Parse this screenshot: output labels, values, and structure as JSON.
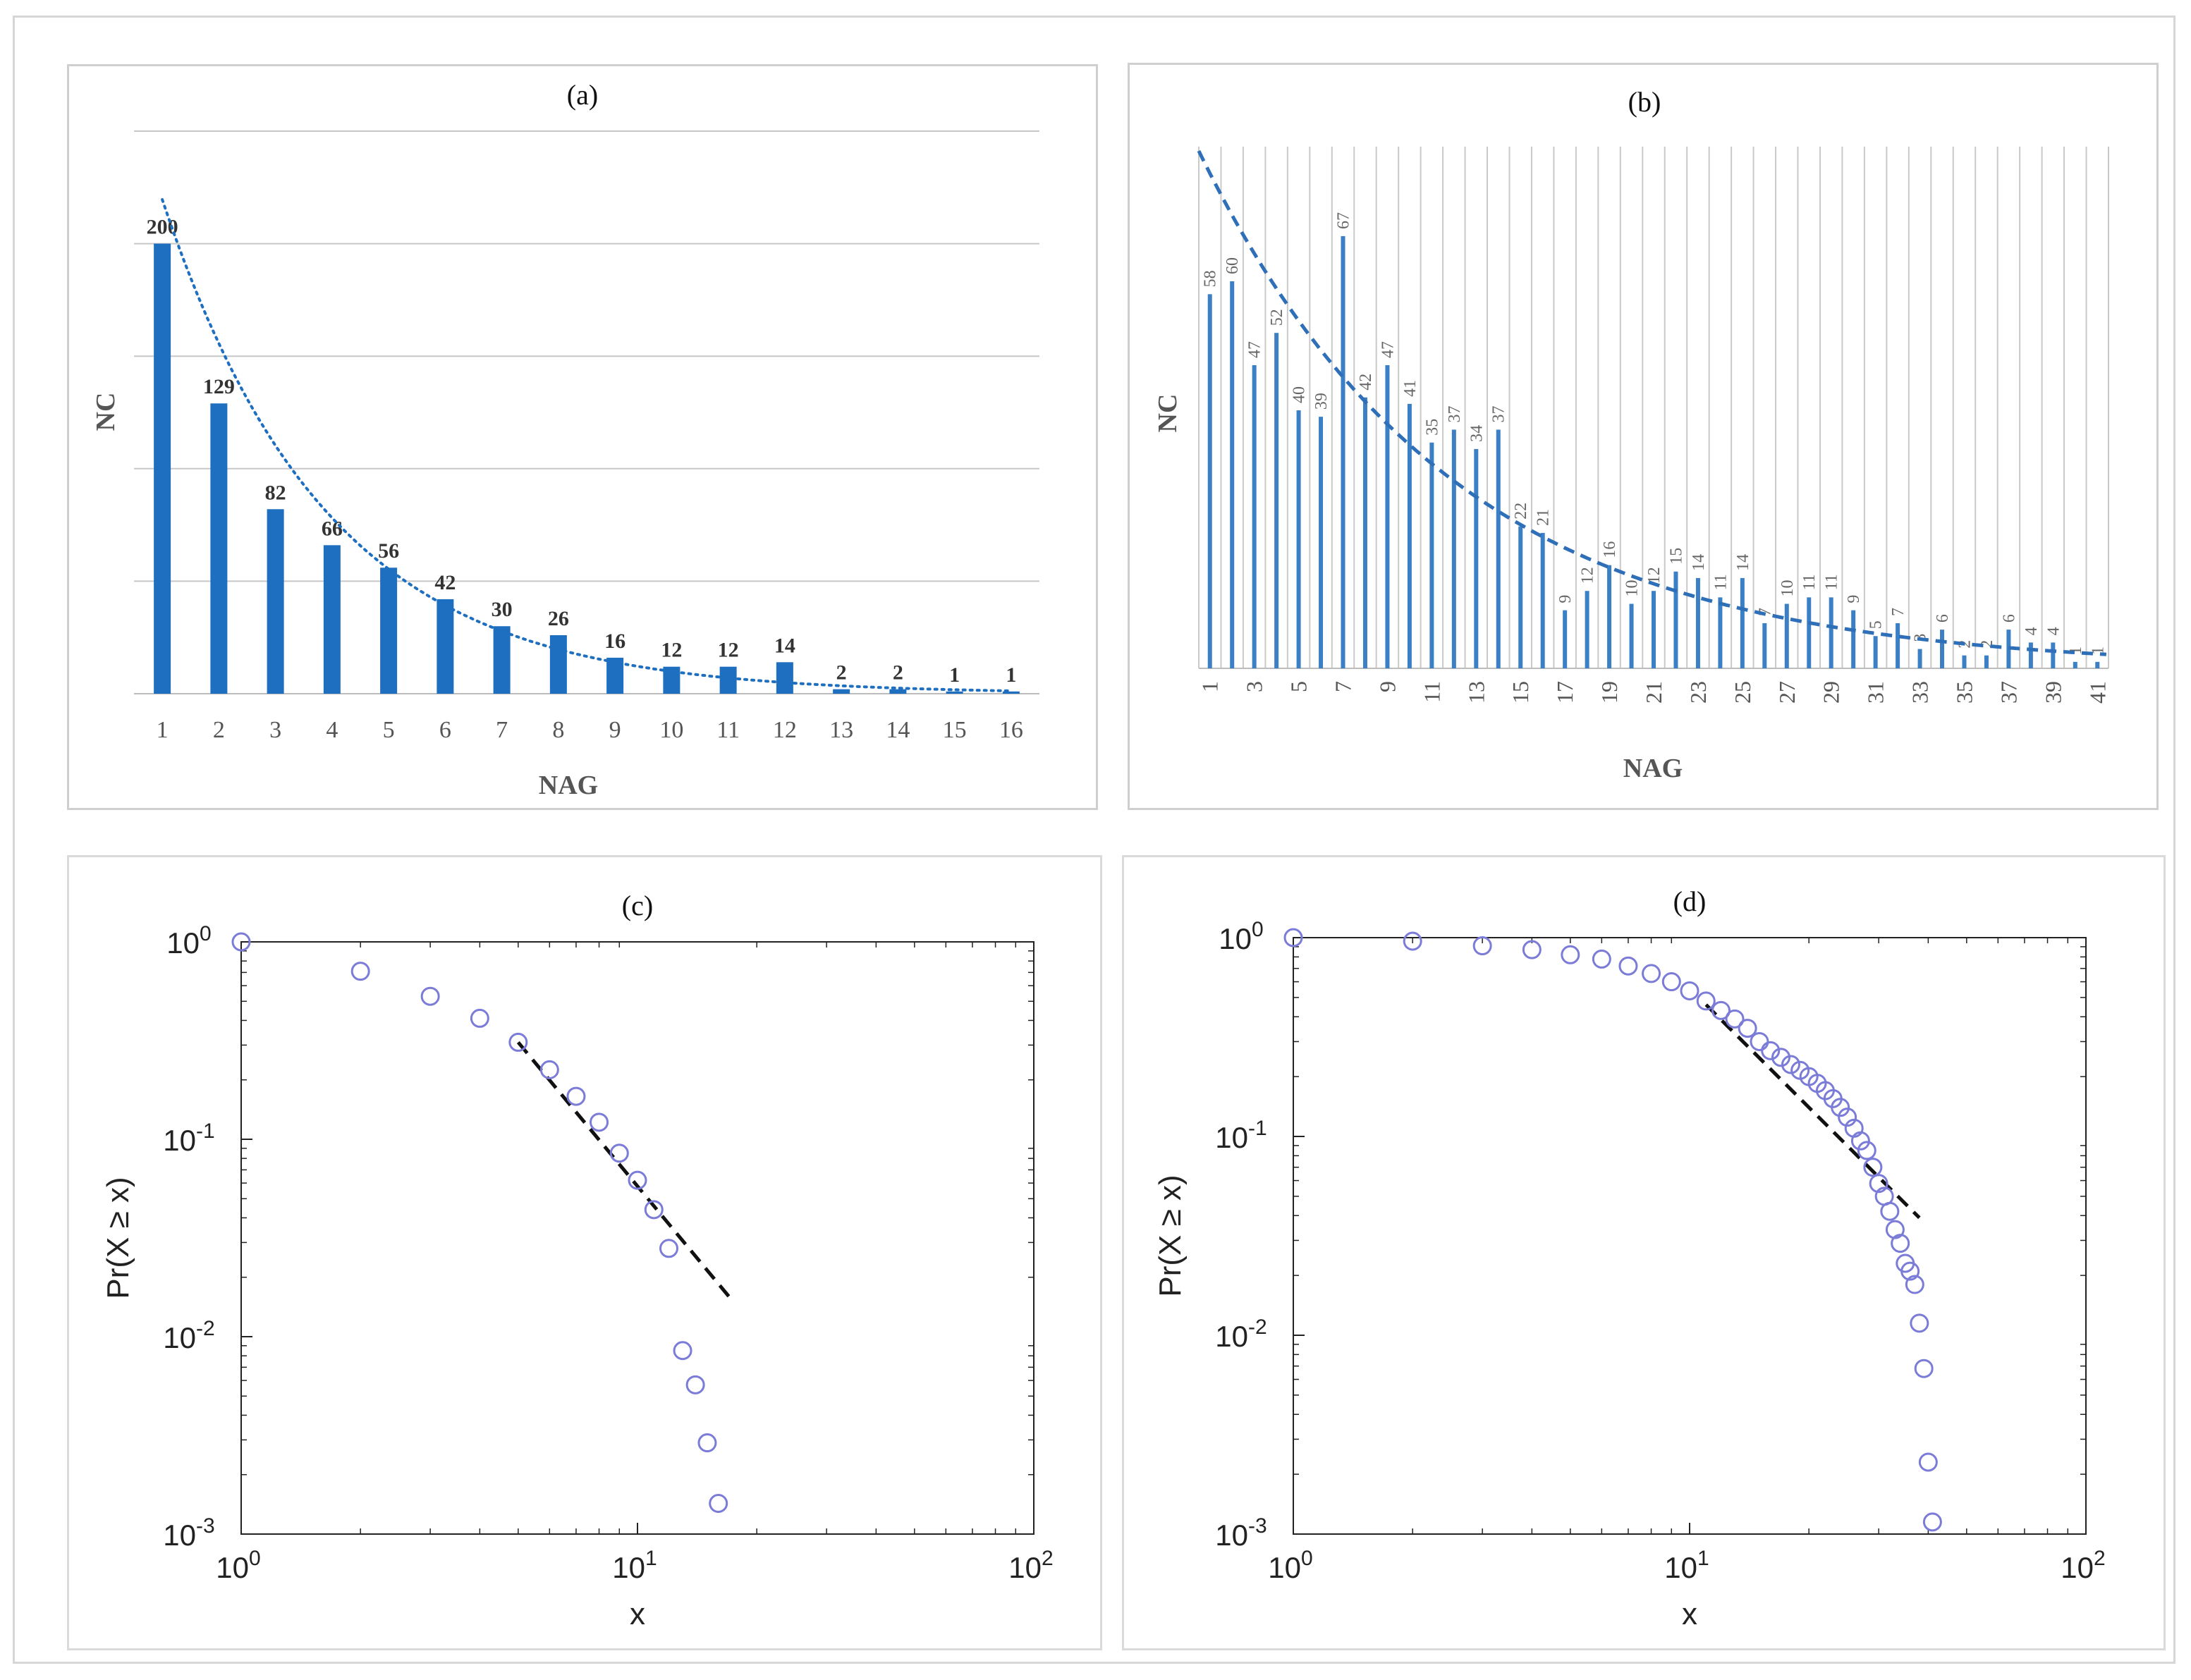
{
  "chart_data": [
    {
      "type": "bar",
      "panel_label": "(a)",
      "title": "",
      "xlabel": "NAG",
      "ylabel": "NC",
      "categories": [
        "1",
        "2",
        "3",
        "4",
        "5",
        "6",
        "7",
        "8",
        "9",
        "10",
        "11",
        "12",
        "13",
        "14",
        "15",
        "16"
      ],
      "values": [
        200,
        129,
        82,
        66,
        56,
        42,
        30,
        26,
        16,
        12,
        12,
        14,
        2,
        2,
        1,
        1
      ],
      "data_labels": [
        "200",
        "129",
        "82",
        "66",
        "56",
        "42",
        "30",
        "26",
        "16",
        "12",
        "12",
        "14",
        "2",
        "2",
        "1",
        "1"
      ],
      "ylim": [
        0,
        250
      ],
      "grid": "horizontal",
      "trendline": "exponential (dotted)",
      "color": "#1f6fc0"
    },
    {
      "type": "bar",
      "panel_label": "(b)",
      "title": "",
      "xlabel": "NAG",
      "ylabel": "NC",
      "categories": [
        "1",
        "2",
        "3",
        "4",
        "5",
        "6",
        "7",
        "8",
        "9",
        "10",
        "11",
        "12",
        "13",
        "14",
        "15",
        "16",
        "17",
        "18",
        "19",
        "20",
        "21",
        "22",
        "23",
        "24",
        "25",
        "26",
        "27",
        "28",
        "29",
        "30",
        "31",
        "32",
        "33",
        "34",
        "35",
        "36",
        "37",
        "38",
        "39",
        "40",
        "41"
      ],
      "tick_labels": [
        "1",
        "3",
        "5",
        "7",
        "9",
        "11",
        "13",
        "15",
        "17",
        "19",
        "21",
        "23",
        "25",
        "27",
        "29",
        "31",
        "33",
        "35",
        "37",
        "39",
        "41"
      ],
      "values": [
        58,
        60,
        47,
        52,
        40,
        39,
        67,
        42,
        47,
        41,
        35,
        37,
        34,
        37,
        22,
        21,
        9,
        12,
        16,
        10,
        12,
        15,
        14,
        11,
        14,
        7,
        10,
        11,
        11,
        9,
        5,
        7,
        3,
        6,
        2,
        2,
        6,
        4,
        4,
        1,
        1
      ],
      "data_labels": [
        "58",
        "60",
        "47",
        "52",
        "40",
        "39",
        "67",
        "42",
        "47",
        "41",
        "35",
        "37",
        "34",
        "37",
        "22",
        "21",
        "9",
        "12",
        "16",
        "10",
        "12",
        "15",
        "14",
        "11",
        "14",
        "7",
        "10",
        "11",
        "11",
        "9",
        "5",
        "7",
        "3",
        "6",
        "2",
        "2",
        "6",
        "4",
        "4",
        "1",
        "1"
      ],
      "ylim": [
        0,
        80
      ],
      "grid": "vertical",
      "trendline": "exponential (dashed)",
      "color": "#3b7fc4"
    },
    {
      "type": "scatter",
      "panel_label": "(c)",
      "title": "",
      "xlabel": "x",
      "ylabel": "Pr(X ≥ x)",
      "xscale": "log",
      "yscale": "log",
      "xlim": [
        1,
        100
      ],
      "ylim": [
        0.001,
        1
      ],
      "x_ticks": [
        {
          "base": "10",
          "exp": "0"
        },
        {
          "base": "10",
          "exp": "1"
        },
        {
          "base": "10",
          "exp": "2"
        }
      ],
      "y_ticks": [
        {
          "base": "10",
          "exp": "0"
        },
        {
          "base": "10",
          "exp": "-1"
        },
        {
          "base": "10",
          "exp": "-2"
        },
        {
          "base": "10",
          "exp": "-3"
        }
      ],
      "x": [
        1,
        2,
        3,
        4,
        5,
        6,
        7,
        8,
        9,
        10,
        11,
        12,
        13,
        14,
        15,
        16
      ],
      "y": [
        1.0,
        0.71,
        0.53,
        0.41,
        0.31,
        0.225,
        0.165,
        0.122,
        0.085,
        0.062,
        0.044,
        0.028,
        0.0085,
        0.0057,
        0.0029,
        0.00143
      ],
      "fit_line": {
        "x": [
          5,
          17
        ],
        "y": [
          0.31,
          0.016
        ],
        "style": "dashed"
      },
      "marker_color": "#7b7bd8"
    },
    {
      "type": "scatter",
      "panel_label": "(d)",
      "title": "",
      "xlabel": "x",
      "ylabel": "Pr(X ≥ x)",
      "xscale": "log",
      "yscale": "log",
      "xlim": [
        1,
        100
      ],
      "ylim": [
        0.001,
        1
      ],
      "x_ticks": [
        {
          "base": "10",
          "exp": "0"
        },
        {
          "base": "10",
          "exp": "1"
        },
        {
          "base": "10",
          "exp": "2"
        }
      ],
      "y_ticks": [
        {
          "base": "10",
          "exp": "0"
        },
        {
          "base": "10",
          "exp": "-1"
        },
        {
          "base": "10",
          "exp": "-2"
        },
        {
          "base": "10",
          "exp": "-3"
        }
      ],
      "x": [
        1,
        2,
        3,
        4,
        5,
        6,
        7,
        8,
        9,
        10,
        11,
        12,
        13,
        14,
        15,
        16,
        17,
        18,
        19,
        20,
        21,
        22,
        23,
        24,
        25,
        26,
        27,
        28,
        29,
        30,
        31,
        32,
        33,
        34,
        35,
        36,
        37,
        38,
        39,
        40,
        41
      ],
      "y": [
        1.0,
        0.96,
        0.91,
        0.87,
        0.82,
        0.78,
        0.72,
        0.66,
        0.6,
        0.54,
        0.48,
        0.43,
        0.39,
        0.35,
        0.3,
        0.27,
        0.25,
        0.23,
        0.215,
        0.2,
        0.185,
        0.17,
        0.155,
        0.14,
        0.125,
        0.11,
        0.095,
        0.085,
        0.07,
        0.058,
        0.05,
        0.042,
        0.034,
        0.029,
        0.023,
        0.021,
        0.018,
        0.0115,
        0.0068,
        0.0023,
        0.00115
      ],
      "fit_line": {
        "x": [
          11,
          38
        ],
        "y": [
          0.46,
          0.039
        ],
        "style": "dashed"
      },
      "marker_color": "#7b7bd8"
    }
  ]
}
